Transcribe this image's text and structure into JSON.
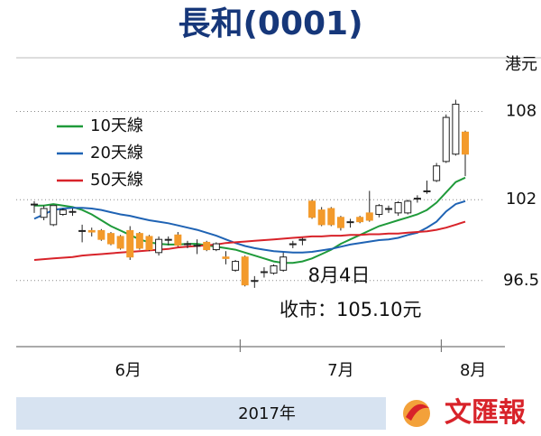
{
  "chart_data": {
    "type": "candlestick",
    "title": "長和(0001)",
    "y_unit": "港元",
    "ylim": [
      92,
      110
    ],
    "yticks": [
      96.5,
      102,
      108
    ],
    "grid": true,
    "categories": [
      null,
      null,
      null,
      null,
      null,
      null,
      null,
      null,
      null,
      null,
      null,
      null,
      null,
      null,
      null,
      null,
      null,
      null,
      null,
      null,
      null,
      null,
      null,
      null,
      null,
      null,
      null,
      null,
      null,
      null,
      null,
      null,
      null,
      null,
      null,
      null,
      null,
      null,
      null,
      null,
      null,
      null,
      null,
      null,
      null,
      null
    ],
    "x_groups": [
      {
        "label": "6月",
        "count": 22
      },
      {
        "label": "7月",
        "count": 21
      },
      {
        "label": "8月",
        "count": 3
      }
    ],
    "up_color": "#ffffff",
    "down_color": "#f39a2b",
    "open": [
      101.7,
      100.8,
      100.3,
      101.0,
      101.2,
      99.9,
      99.9,
      99.9,
      99.7,
      99.5,
      99.9,
      99.7,
      99.5,
      98.4,
      99.3,
      99.6,
      99.0,
      98.9,
      99.1,
      98.6,
      98.1,
      97.2,
      98.1,
      96.5,
      97.1,
      97.0,
      97.2,
      99.0,
      99.3,
      101.9,
      101.3,
      101.4,
      100.8,
      100.5,
      100.8,
      101.1,
      101.0,
      101.4,
      101.1,
      101.1,
      102.1,
      102.6,
      103.3,
      104.6,
      105.1,
      106.6
    ],
    "high": [
      101.9,
      101.6,
      101.6,
      101.4,
      101.4,
      100.3,
      100.1,
      100.0,
      99.8,
      99.6,
      100.2,
      99.8,
      99.6,
      99.5,
      99.5,
      99.8,
      99.2,
      99.3,
      99.2,
      99.1,
      98.5,
      97.9,
      98.2,
      96.8,
      97.4,
      97.6,
      98.4,
      99.2,
      99.4,
      102.0,
      101.5,
      101.5,
      100.9,
      100.7,
      100.9,
      102.6,
      101.7,
      101.6,
      101.9,
      102.0,
      102.3,
      103.3,
      104.5,
      107.8,
      108.8,
      106.7
    ],
    "low": [
      101.1,
      100.6,
      100.2,
      100.9,
      100.9,
      99.1,
      99.5,
      99.2,
      98.9,
      98.6,
      97.9,
      98.6,
      98.5,
      98.2,
      98.9,
      98.8,
      98.7,
      98.3,
      98.5,
      98.5,
      97.6,
      97.1,
      96.1,
      96.0,
      96.7,
      96.9,
      97.1,
      98.7,
      98.9,
      100.7,
      100.2,
      100.2,
      99.9,
      100.1,
      100.4,
      100.5,
      100.8,
      101.1,
      100.9,
      101.0,
      101.8,
      102.4,
      103.2,
      104.5,
      105.0,
      103.6
    ],
    "close": [
      101.7,
      101.4,
      101.6,
      101.3,
      101.2,
      99.9,
      99.8,
      99.3,
      99.0,
      98.7,
      98.1,
      98.7,
      98.6,
      99.3,
      99.3,
      98.9,
      99.0,
      98.9,
      98.6,
      99.0,
      98.0,
      97.8,
      96.2,
      96.5,
      97.1,
      97.5,
      98.1,
      99.0,
      99.3,
      100.8,
      100.3,
      100.3,
      100.1,
      100.5,
      100.5,
      100.6,
      101.6,
      101.4,
      101.8,
      101.9,
      102.1,
      102.6,
      104.3,
      107.6,
      108.5,
      105.1
    ],
    "series": [
      {
        "name": "10天線",
        "color": "#1f9a3a",
        "values": [
          101.6,
          101.6,
          101.7,
          101.6,
          101.5,
          101.3,
          101.0,
          100.6,
          100.2,
          99.9,
          99.6,
          99.3,
          99.1,
          99.0,
          98.95,
          98.95,
          99.0,
          99.0,
          98.9,
          98.8,
          98.7,
          98.6,
          98.4,
          98.2,
          98.0,
          97.8,
          97.7,
          97.7,
          97.8,
          98.0,
          98.3,
          98.6,
          99.0,
          99.3,
          99.6,
          99.9,
          100.2,
          100.4,
          100.6,
          100.8,
          101.0,
          101.3,
          101.8,
          102.5,
          103.2,
          103.5
        ]
      },
      {
        "name": "20天線",
        "color": "#1f63b4",
        "values": [
          100.7,
          101.0,
          101.3,
          101.4,
          101.45,
          101.45,
          101.4,
          101.3,
          101.15,
          101.0,
          100.9,
          100.75,
          100.6,
          100.5,
          100.4,
          100.25,
          100.1,
          99.95,
          99.75,
          99.55,
          99.3,
          99.05,
          98.85,
          98.7,
          98.6,
          98.5,
          98.45,
          98.4,
          98.4,
          98.45,
          98.55,
          98.65,
          98.8,
          98.95,
          99.05,
          99.15,
          99.25,
          99.3,
          99.4,
          99.6,
          99.75,
          100.1,
          100.5,
          101.2,
          101.7,
          101.9
        ]
      },
      {
        "name": "50天線",
        "color": "#d8232a",
        "values": [
          97.9,
          97.95,
          98.0,
          98.05,
          98.1,
          98.2,
          98.25,
          98.3,
          98.35,
          98.4,
          98.45,
          98.5,
          98.55,
          98.6,
          98.65,
          98.75,
          98.8,
          98.85,
          98.9,
          98.95,
          99.05,
          99.1,
          99.15,
          99.2,
          99.25,
          99.3,
          99.35,
          99.4,
          99.45,
          99.5,
          99.5,
          99.55,
          99.55,
          99.6,
          99.6,
          99.65,
          99.65,
          99.7,
          99.7,
          99.75,
          99.8,
          99.85,
          99.95,
          100.1,
          100.3,
          100.5
        ]
      }
    ],
    "annotations": [
      "8月4日",
      "收市：105.10元"
    ],
    "footer": "2017年",
    "logo_text": "文匯報"
  }
}
